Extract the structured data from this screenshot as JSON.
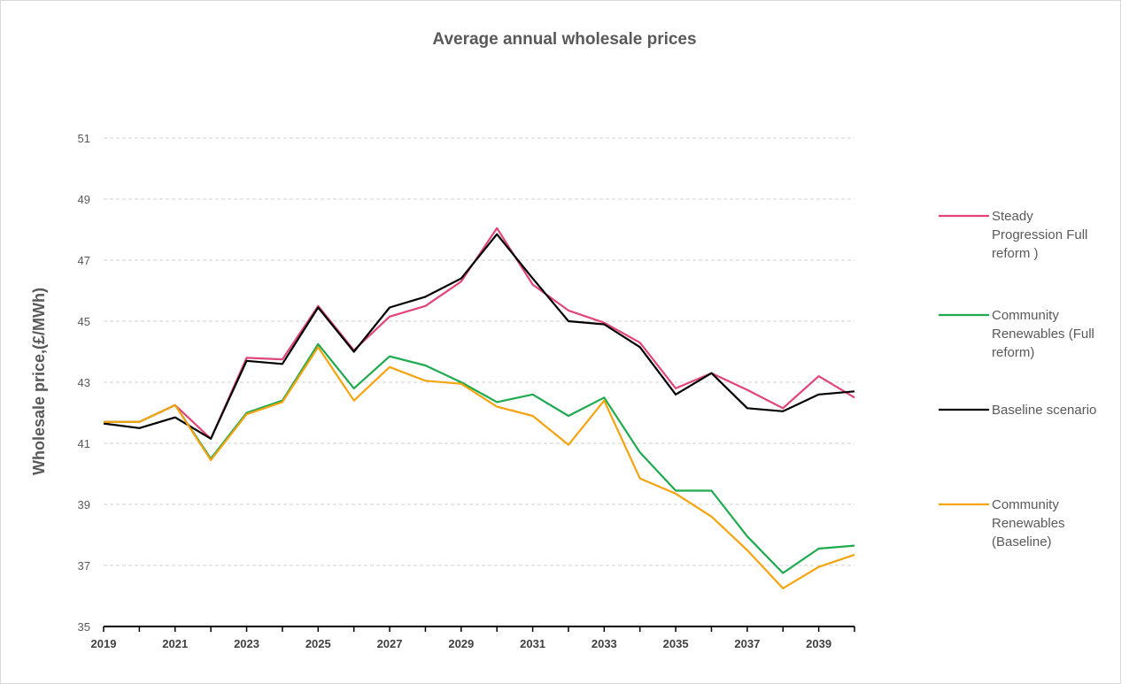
{
  "chart_data": {
    "type": "line",
    "title": "Average annual wholesale prices",
    "ylabel": "Wholesale price,(£/MWh)",
    "xlabel": "",
    "ylim": [
      35,
      51
    ],
    "yticks": [
      35,
      37,
      39,
      41,
      43,
      45,
      47,
      49,
      51
    ],
    "grid": true,
    "legend_position": "right",
    "x": [
      2019,
      2020,
      2021,
      2022,
      2023,
      2024,
      2025,
      2026,
      2027,
      2028,
      2029,
      2030,
      2031,
      2032,
      2033,
      2034,
      2035,
      2036,
      2037,
      2038,
      2039,
      2040
    ],
    "xtick_labels": [
      "2019",
      "2021",
      "2023",
      "2025",
      "2027",
      "2029",
      "2031",
      "2033",
      "2035",
      "2037",
      "2039"
    ],
    "series": [
      {
        "name": "Steady Progression Full reform )",
        "legend_lines": [
          "Steady",
          "Progression Full",
          "reform )"
        ],
        "color": "#e0457b",
        "values": [
          41.7,
          41.7,
          42.25,
          41.15,
          43.8,
          43.75,
          45.5,
          44.05,
          45.15,
          45.5,
          46.3,
          48.05,
          46.2,
          45.35,
          44.95,
          44.3,
          42.8,
          43.3,
          42.75,
          42.15,
          43.2,
          42.5
        ]
      },
      {
        "name": "Community Renewables (Full reform)",
        "legend_lines": [
          "Community",
          "Renewables (Full",
          "reform)"
        ],
        "color": "#1faa4f",
        "values": [
          41.7,
          41.7,
          42.25,
          40.5,
          42.0,
          42.4,
          44.25,
          42.8,
          43.85,
          43.55,
          43.0,
          42.35,
          42.6,
          41.9,
          42.5,
          40.7,
          39.45,
          39.45,
          37.95,
          36.75,
          37.55,
          37.65
        ]
      },
      {
        "name": "Baseline scenario",
        "legend_lines": [
          "Baseline scenario"
        ],
        "color": "#000000",
        "values": [
          41.65,
          41.5,
          41.85,
          41.15,
          43.7,
          43.6,
          45.45,
          44.0,
          45.45,
          45.8,
          46.4,
          47.85,
          46.4,
          45.0,
          44.9,
          44.15,
          42.6,
          43.3,
          42.15,
          42.05,
          42.6,
          42.7
        ]
      },
      {
        "name": "Community Renewables (Baseline)",
        "legend_lines": [
          "Community",
          "Renewables",
          "(Baseline)"
        ],
        "color": "#f5a30f",
        "values": [
          41.7,
          41.7,
          42.25,
          40.45,
          41.95,
          42.35,
          44.15,
          42.4,
          43.5,
          43.05,
          42.95,
          42.2,
          41.9,
          40.95,
          42.4,
          39.85,
          39.35,
          38.6,
          37.5,
          36.25,
          36.95,
          37.35
        ]
      }
    ]
  }
}
